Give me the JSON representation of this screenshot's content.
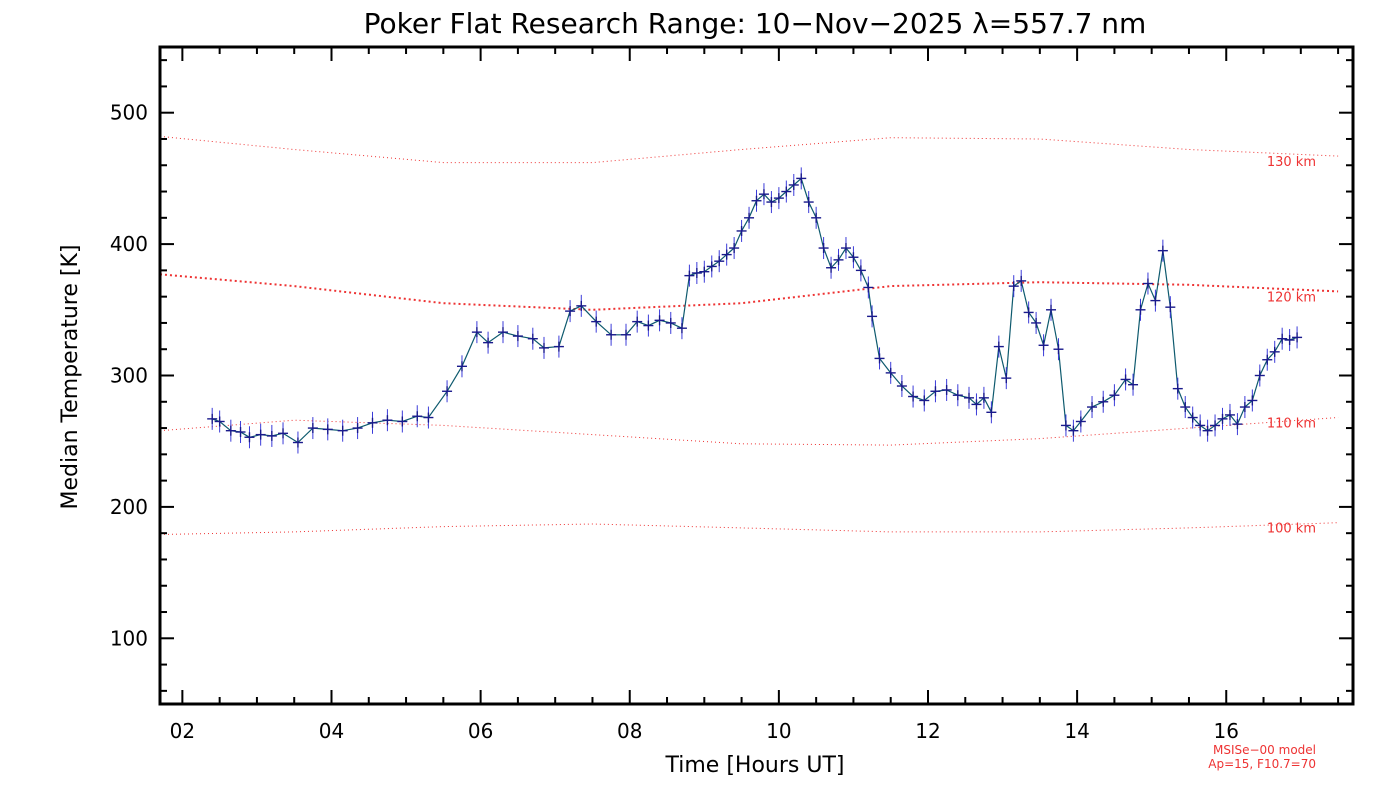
{
  "chart_data": {
    "type": "line",
    "title": "Poker Flat Research Range: 10−Nov−2025 λ=557.7 nm",
    "xlabel": "Time [Hours UT]",
    "ylabel": "Median Temperature [K]",
    "xlim": [
      1.7,
      17.7
    ],
    "ylim": [
      50,
      550
    ],
    "x_ticks": [
      2,
      4,
      6,
      8,
      10,
      12,
      14,
      16
    ],
    "x_tick_labels": [
      "02",
      "04",
      "06",
      "08",
      "10",
      "12",
      "14",
      "16"
    ],
    "y_ticks": [
      100,
      200,
      300,
      400,
      500
    ],
    "y_tick_labels": [
      "100",
      "200",
      "300",
      "400",
      "500"
    ],
    "grid": false,
    "series": [
      {
        "color": "#1a1a8c",
        "marker": "plus",
        "x": [
          2.4,
          2.5,
          2.65,
          2.78,
          2.9,
          3.05,
          3.2,
          3.35,
          3.55,
          3.75,
          3.95,
          4.15,
          4.35,
          4.55,
          4.75,
          4.95,
          5.15,
          5.3,
          5.55,
          5.75,
          5.95,
          6.1,
          6.3,
          6.5,
          6.7,
          6.85,
          7.05,
          7.2,
          7.35,
          7.55,
          7.75,
          7.95,
          8.1,
          8.25,
          8.4,
          8.55,
          8.7,
          8.8,
          8.9,
          9.0,
          9.1,
          9.2,
          9.3,
          9.4,
          9.5,
          9.6,
          9.7,
          9.8,
          9.9,
          10.0,
          10.1,
          10.2,
          10.3,
          10.4,
          10.5,
          10.6,
          10.7,
          10.8,
          10.9,
          11.0,
          11.1,
          11.2,
          11.25,
          11.35,
          11.5,
          11.65,
          11.8,
          11.95,
          12.1,
          12.25,
          12.4,
          12.55,
          12.65,
          12.75,
          12.85,
          12.95,
          13.05,
          13.15,
          13.25,
          13.35,
          13.45,
          13.55,
          13.65,
          13.75,
          13.85,
          13.95,
          14.05,
          14.2,
          14.35,
          14.5,
          14.65,
          14.75,
          14.85,
          14.95,
          15.05,
          15.15,
          15.25,
          15.35,
          15.45,
          15.55,
          15.65,
          15.75,
          15.85,
          15.95,
          16.05,
          16.15,
          16.25,
          16.35,
          16.45,
          16.55,
          16.65,
          16.75,
          16.85,
          16.95
        ],
        "y": [
          267,
          265,
          258,
          257,
          253,
          255,
          254,
          256,
          249,
          260,
          259,
          258,
          260,
          264,
          266,
          265,
          269,
          268,
          288,
          307,
          333,
          325,
          333,
          330,
          328,
          321,
          322,
          349,
          353,
          341,
          331,
          331,
          341,
          338,
          342,
          340,
          336,
          376,
          378,
          379,
          383,
          387,
          392,
          397,
          410,
          420,
          433,
          438,
          432,
          435,
          440,
          445,
          450,
          432,
          420,
          397,
          382,
          388,
          397,
          390,
          380,
          367,
          345,
          313,
          302,
          292,
          284,
          281,
          288,
          289,
          285,
          283,
          278,
          283,
          272,
          322,
          298,
          368,
          372,
          348,
          340,
          323,
          350,
          320,
          262,
          258,
          265,
          276,
          280,
          285,
          297,
          293,
          350,
          370,
          357,
          395,
          352,
          290,
          276,
          268,
          262,
          258,
          262,
          267,
          270,
          263,
          276,
          281,
          300,
          312,
          318,
          328,
          327,
          329
        ]
      }
    ],
    "reference_curves": [
      {
        "label": "130 km",
        "x": [
          1.7,
          3.5,
          5.5,
          7.5,
          9.5,
          11.5,
          13.5,
          15.5,
          17.5
        ],
        "y": [
          482,
          472,
          462,
          462,
          472,
          481,
          480,
          472,
          467
        ]
      },
      {
        "label": "120 km",
        "x": [
          1.7,
          3.5,
          5.5,
          7.5,
          9.5,
          11.5,
          13.5,
          15.5,
          17.5
        ],
        "y": [
          377,
          368,
          355,
          350,
          355,
          368,
          371,
          369,
          364
        ]
      },
      {
        "label": "110 km",
        "x": [
          1.7,
          3.5,
          5.5,
          7.5,
          9.5,
          11.5,
          13.5,
          15.5,
          17.5
        ],
        "y": [
          258,
          266,
          262,
          255,
          248,
          247,
          252,
          260,
          268
        ]
      },
      {
        "label": "100 km",
        "x": [
          1.7,
          3.5,
          5.5,
          7.5,
          9.5,
          11.5,
          13.5,
          15.5,
          17.5
        ],
        "y": [
          179,
          181,
          185,
          187,
          184,
          181,
          181,
          184,
          188
        ]
      }
    ],
    "reference_color": "#e33",
    "annotations": [
      "MSISe−00 model",
      "Ap=15, F10.7=70"
    ]
  }
}
